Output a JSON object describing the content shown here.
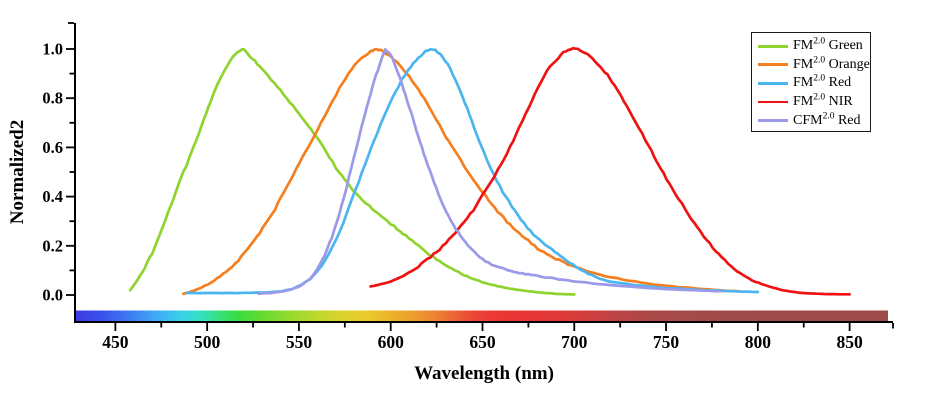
{
  "figure": {
    "background": "#ffffff",
    "axis_color": "#000000"
  },
  "chart_data": {
    "type": "line",
    "title": "",
    "xlabel": "Wavelength (nm)",
    "ylabel": "Normalized2",
    "xlim": [
      428,
      872
    ],
    "ylim": [
      0,
      1.1
    ],
    "grid": false,
    "legend_position": "top-right",
    "x_axis": {
      "range": [
        428,
        872
      ],
      "major_ticks": [
        450,
        500,
        550,
        600,
        650,
        700,
        750,
        800,
        850
      ],
      "tick_labels": [
        "450",
        "500",
        "550",
        "600",
        "650",
        "700",
        "750",
        "800",
        "850"
      ],
      "minor_ticks": [
        475,
        525,
        575,
        625,
        675,
        725,
        775,
        825
      ]
    },
    "y_axis": {
      "range": [
        0,
        1
      ],
      "major_ticks": [
        0,
        0.2,
        0.4,
        0.6,
        0.8,
        1
      ],
      "tick_labels": [
        "0.0",
        "0.2",
        "0.4",
        "0.6",
        "0.8",
        "1.0"
      ],
      "minor_ticks": [
        0.1,
        0.3,
        0.5,
        0.7,
        0.9
      ]
    },
    "colorbar": {
      "description": "visible-spectrum strip along x-axis",
      "stops": [
        [
          428,
          "#3b3be2"
        ],
        [
          443,
          "#3a52ec"
        ],
        [
          458,
          "#3c7cf2"
        ],
        [
          472,
          "#3fa9f6"
        ],
        [
          486,
          "#39d2ea"
        ],
        [
          497,
          "#35e0c0"
        ],
        [
          507,
          "#36e17b"
        ],
        [
          517,
          "#3adc41"
        ],
        [
          530,
          "#64da31"
        ],
        [
          545,
          "#94da2e"
        ],
        [
          560,
          "#bcd82d"
        ],
        [
          575,
          "#dcd22d"
        ],
        [
          588,
          "#e9ca2c"
        ],
        [
          600,
          "#ecb32b"
        ],
        [
          612,
          "#eda02d"
        ],
        [
          624,
          "#ed8531"
        ],
        [
          636,
          "#ed6234"
        ],
        [
          646,
          "#ec4537"
        ],
        [
          658,
          "#ec3737"
        ],
        [
          672,
          "#ea3535"
        ],
        [
          690,
          "#e23a3a"
        ],
        [
          705,
          "#d43d3d"
        ],
        [
          720,
          "#c04343"
        ],
        [
          740,
          "#ad4747"
        ],
        [
          765,
          "#a34a4a"
        ],
        [
          800,
          "#9e4b4b"
        ],
        [
          872,
          "#9d4b4b"
        ]
      ]
    },
    "series": [
      {
        "name": "FM2.0 Green",
        "label_prefix": "FM",
        "label_sup": "2.0",
        "label_suffix": " Green",
        "color": "#8fd32e",
        "peak_nm": 520,
        "points": [
          [
            458,
            0.02
          ],
          [
            462,
            0.06
          ],
          [
            466,
            0.11
          ],
          [
            470,
            0.17
          ],
          [
            474,
            0.24
          ],
          [
            478,
            0.32
          ],
          [
            482,
            0.4
          ],
          [
            486,
            0.48
          ],
          [
            490,
            0.55
          ],
          [
            494,
            0.63
          ],
          [
            498,
            0.71
          ],
          [
            502,
            0.79
          ],
          [
            506,
            0.86
          ],
          [
            510,
            0.92
          ],
          [
            514,
            0.97
          ],
          [
            517,
            0.99
          ],
          [
            520,
            1.0
          ],
          [
            523,
            0.975
          ],
          [
            526,
            0.95
          ],
          [
            530,
            0.92
          ],
          [
            535,
            0.875
          ],
          [
            540,
            0.83
          ],
          [
            545,
            0.785
          ],
          [
            550,
            0.74
          ],
          [
            555,
            0.69
          ],
          [
            560,
            0.64
          ],
          [
            565,
            0.58
          ],
          [
            570,
            0.52
          ],
          [
            575,
            0.47
          ],
          [
            580,
            0.42
          ],
          [
            585,
            0.385
          ],
          [
            590,
            0.35
          ],
          [
            595,
            0.32
          ],
          [
            600,
            0.29
          ],
          [
            605,
            0.26
          ],
          [
            610,
            0.23
          ],
          [
            615,
            0.2
          ],
          [
            620,
            0.17
          ],
          [
            625,
            0.145
          ],
          [
            630,
            0.12
          ],
          [
            635,
            0.1
          ],
          [
            640,
            0.08
          ],
          [
            645,
            0.065
          ],
          [
            650,
            0.052
          ],
          [
            655,
            0.042
          ],
          [
            660,
            0.033
          ],
          [
            665,
            0.026
          ],
          [
            670,
            0.02
          ],
          [
            675,
            0.015
          ],
          [
            680,
            0.011
          ],
          [
            685,
            0.008
          ],
          [
            690,
            0.005
          ],
          [
            695,
            0.003
          ],
          [
            700,
            0.002
          ]
        ]
      },
      {
        "name": "FM2.0 Orange",
        "label_prefix": "FM",
        "label_sup": "2.0",
        "label_suffix": " Orange",
        "color": "#f57e1e",
        "peak_nm": 592,
        "points": [
          [
            487,
            0.005
          ],
          [
            492,
            0.015
          ],
          [
            497,
            0.03
          ],
          [
            502,
            0.05
          ],
          [
            507,
            0.075
          ],
          [
            512,
            0.105
          ],
          [
            517,
            0.14
          ],
          [
            522,
            0.185
          ],
          [
            527,
            0.235
          ],
          [
            532,
            0.29
          ],
          [
            537,
            0.35
          ],
          [
            542,
            0.42
          ],
          [
            547,
            0.49
          ],
          [
            552,
            0.56
          ],
          [
            557,
            0.63
          ],
          [
            562,
            0.7
          ],
          [
            567,
            0.77
          ],
          [
            572,
            0.84
          ],
          [
            577,
            0.9
          ],
          [
            582,
            0.95
          ],
          [
            586,
            0.975
          ],
          [
            589,
            0.99
          ],
          [
            592,
            1.0
          ],
          [
            596,
            0.99
          ],
          [
            600,
            0.97
          ],
          [
            605,
            0.935
          ],
          [
            610,
            0.89
          ],
          [
            615,
            0.835
          ],
          [
            620,
            0.775
          ],
          [
            625,
            0.71
          ],
          [
            630,
            0.645
          ],
          [
            635,
            0.585
          ],
          [
            640,
            0.525
          ],
          [
            645,
            0.47
          ],
          [
            650,
            0.42
          ],
          [
            655,
            0.37
          ],
          [
            660,
            0.325
          ],
          [
            665,
            0.285
          ],
          [
            670,
            0.25
          ],
          [
            675,
            0.22
          ],
          [
            680,
            0.19
          ],
          [
            685,
            0.168
          ],
          [
            690,
            0.148
          ],
          [
            695,
            0.13
          ],
          [
            700,
            0.115
          ],
          [
            710,
            0.09
          ],
          [
            720,
            0.072
          ],
          [
            730,
            0.058
          ],
          [
            740,
            0.046
          ],
          [
            750,
            0.037
          ],
          [
            760,
            0.03
          ],
          [
            770,
            0.024
          ],
          [
            780,
            0.019
          ],
          [
            790,
            0.015
          ]
        ]
      },
      {
        "name": "FM2.0 Red",
        "label_prefix": "FM",
        "label_sup": "2.0",
        "label_suffix": " Red",
        "color": "#4bb5f0",
        "peak_nm": 623,
        "points": [
          [
            489,
            0.008
          ],
          [
            500,
            0.008
          ],
          [
            512,
            0.008
          ],
          [
            524,
            0.009
          ],
          [
            533,
            0.011
          ],
          [
            540,
            0.015
          ],
          [
            546,
            0.024
          ],
          [
            551,
            0.04
          ],
          [
            556,
            0.065
          ],
          [
            561,
            0.105
          ],
          [
            566,
            0.16
          ],
          [
            571,
            0.235
          ],
          [
            576,
            0.33
          ],
          [
            581,
            0.43
          ],
          [
            586,
            0.53
          ],
          [
            591,
            0.63
          ],
          [
            596,
            0.72
          ],
          [
            601,
            0.8
          ],
          [
            606,
            0.875
          ],
          [
            611,
            0.93
          ],
          [
            615,
            0.965
          ],
          [
            619,
            0.99
          ],
          [
            623,
            1.0
          ],
          [
            627,
            0.98
          ],
          [
            631,
            0.94
          ],
          [
            635,
            0.88
          ],
          [
            639,
            0.81
          ],
          [
            643,
            0.73
          ],
          [
            647,
            0.65
          ],
          [
            651,
            0.575
          ],
          [
            656,
            0.49
          ],
          [
            661,
            0.42
          ],
          [
            666,
            0.36
          ],
          [
            671,
            0.305
          ],
          [
            676,
            0.26
          ],
          [
            681,
            0.225
          ],
          [
            686,
            0.195
          ],
          [
            691,
            0.165
          ],
          [
            696,
            0.14
          ],
          [
            701,
            0.115
          ],
          [
            706,
            0.092
          ],
          [
            711,
            0.075
          ],
          [
            716,
            0.062
          ],
          [
            721,
            0.053
          ],
          [
            731,
            0.042
          ],
          [
            741,
            0.034
          ],
          [
            751,
            0.028
          ],
          [
            761,
            0.024
          ],
          [
            771,
            0.02
          ],
          [
            781,
            0.017
          ],
          [
            791,
            0.014
          ],
          [
            800,
            0.012
          ]
        ]
      },
      {
        "name": "FM2.0 NIR",
        "label_prefix": "FM",
        "label_sup": "2.0",
        "label_suffix": " NIR",
        "color": "#f01212",
        "peak_nm": 700,
        "points": [
          [
            589,
            0.035
          ],
          [
            595,
            0.045
          ],
          [
            600,
            0.055
          ],
          [
            605,
            0.07
          ],
          [
            610,
            0.09
          ],
          [
            615,
            0.115
          ],
          [
            620,
            0.145
          ],
          [
            625,
            0.175
          ],
          [
            630,
            0.21
          ],
          [
            635,
            0.25
          ],
          [
            640,
            0.295
          ],
          [
            645,
            0.345
          ],
          [
            650,
            0.405
          ],
          [
            655,
            0.465
          ],
          [
            660,
            0.53
          ],
          [
            665,
            0.6
          ],
          [
            670,
            0.68
          ],
          [
            675,
            0.76
          ],
          [
            680,
            0.84
          ],
          [
            685,
            0.91
          ],
          [
            690,
            0.955
          ],
          [
            694,
            0.985
          ],
          [
            698,
            1.0
          ],
          [
            702,
            1.0
          ],
          [
            706,
            0.985
          ],
          [
            710,
            0.96
          ],
          [
            714,
            0.93
          ],
          [
            718,
            0.895
          ],
          [
            722,
            0.85
          ],
          [
            727,
            0.79
          ],
          [
            732,
            0.72
          ],
          [
            737,
            0.655
          ],
          [
            742,
            0.585
          ],
          [
            747,
            0.515
          ],
          [
            752,
            0.45
          ],
          [
            757,
            0.39
          ],
          [
            762,
            0.33
          ],
          [
            767,
            0.275
          ],
          [
            772,
            0.225
          ],
          [
            777,
            0.18
          ],
          [
            782,
            0.14
          ],
          [
            787,
            0.105
          ],
          [
            792,
            0.08
          ],
          [
            797,
            0.06
          ],
          [
            802,
            0.044
          ],
          [
            807,
            0.032
          ],
          [
            812,
            0.022
          ],
          [
            817,
            0.015
          ],
          [
            822,
            0.01
          ],
          [
            827,
            0.007
          ],
          [
            832,
            0.005
          ],
          [
            838,
            0.004
          ],
          [
            844,
            0.003
          ],
          [
            850,
            0.003
          ]
        ]
      },
      {
        "name": "CFM2.0 Red",
        "label_prefix": "CFM",
        "label_sup": "2.0",
        "label_suffix": " Red",
        "color": "#9b9ae8",
        "peak_nm": 597,
        "points": [
          [
            528,
            0.005
          ],
          [
            534,
            0.008
          ],
          [
            540,
            0.013
          ],
          [
            546,
            0.022
          ],
          [
            551,
            0.038
          ],
          [
            556,
            0.065
          ],
          [
            560,
            0.105
          ],
          [
            564,
            0.16
          ],
          [
            568,
            0.235
          ],
          [
            572,
            0.33
          ],
          [
            576,
            0.44
          ],
          [
            580,
            0.56
          ],
          [
            584,
            0.68
          ],
          [
            588,
            0.79
          ],
          [
            591,
            0.87
          ],
          [
            594,
            0.935
          ],
          [
            597,
            1.0
          ],
          [
            600,
            0.975
          ],
          [
            603,
            0.925
          ],
          [
            606,
            0.86
          ],
          [
            609,
            0.79
          ],
          [
            612,
            0.72
          ],
          [
            615,
            0.645
          ],
          [
            618,
            0.575
          ],
          [
            621,
            0.51
          ],
          [
            624,
            0.45
          ],
          [
            627,
            0.39
          ],
          [
            630,
            0.34
          ],
          [
            634,
            0.285
          ],
          [
            638,
            0.24
          ],
          [
            642,
            0.2
          ],
          [
            646,
            0.17
          ],
          [
            650,
            0.145
          ],
          [
            655,
            0.125
          ],
          [
            660,
            0.11
          ],
          [
            665,
            0.1
          ],
          [
            670,
            0.09
          ],
          [
            675,
            0.083
          ],
          [
            680,
            0.077
          ],
          [
            685,
            0.071
          ],
          [
            690,
            0.066
          ],
          [
            695,
            0.06
          ],
          [
            700,
            0.056
          ],
          [
            710,
            0.047
          ],
          [
            720,
            0.04
          ],
          [
            730,
            0.034
          ],
          [
            740,
            0.029
          ],
          [
            750,
            0.024
          ],
          [
            760,
            0.021
          ],
          [
            770,
            0.018
          ],
          [
            780,
            0.015
          ]
        ]
      }
    ]
  }
}
